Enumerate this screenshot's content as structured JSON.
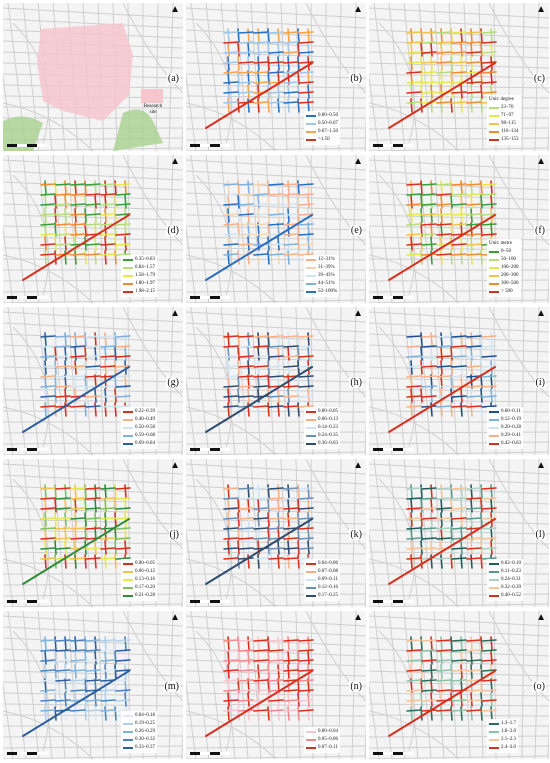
{
  "north_symbol": "▲",
  "research_site_label": "Research site",
  "colors": {
    "background": "#f4f4f4",
    "road": "#cfcfcf",
    "green": "#a9d18e",
    "site": "#f6c6cf"
  },
  "panels": [
    {
      "label": "(a)",
      "legend": null
    },
    {
      "label": "(b)",
      "legend": {
        "unit": "",
        "items": [
          {
            "range": "0.00–0.50",
            "color": "#2b6fbf"
          },
          {
            "range": "0.50–0.67",
            "color": "#9ec6e8"
          },
          {
            "range": "0.67–1.50",
            "color": "#f5a34c"
          },
          {
            "range": ">1.50",
            "color": "#d7301f"
          }
        ]
      }
    },
    {
      "label": "(c)",
      "legend": {
        "unit": "Unit: degree",
        "items": [
          {
            "range": "23–70",
            "color": "#b5dd7a"
          },
          {
            "range": "71–97",
            "color": "#e7e64e"
          },
          {
            "range": "98–115",
            "color": "#f3c24b"
          },
          {
            "range": "116–134",
            "color": "#f08a34"
          },
          {
            "range": "135–153",
            "color": "#d7301f"
          }
        ]
      }
    },
    {
      "label": "(d)",
      "legend": {
        "unit": "",
        "items": [
          {
            "range": "0.35–0.83",
            "color": "#3a9d3a"
          },
          {
            "range": "0.84–1.57",
            "color": "#b5dd7a"
          },
          {
            "range": "1.58–1.79",
            "color": "#e7e64e"
          },
          {
            "range": "1.80–1.97",
            "color": "#f08a34"
          },
          {
            "range": "1.98–2.15",
            "color": "#d7301f"
          }
        ]
      }
    },
    {
      "label": "(e)",
      "legend": {
        "unit": "",
        "items": [
          {
            "range": "12–31%",
            "color": "#f5b08a"
          },
          {
            "range": "31–39%",
            "color": "#f3d5b5"
          },
          {
            "range": "39–43%",
            "color": "#cfe3f0"
          },
          {
            "range": "44–51%",
            "color": "#7fb1da"
          },
          {
            "range": "52–100%",
            "color": "#2b6fbf"
          }
        ]
      }
    },
    {
      "label": "(f)",
      "legend": {
        "unit": "Unit: metre",
        "items": [
          {
            "range": "0–50",
            "color": "#3a9d3a"
          },
          {
            "range": "50–100",
            "color": "#b5dd7a"
          },
          {
            "range": "100–200",
            "color": "#e7e64e"
          },
          {
            "range": "200–300",
            "color": "#f3c24b"
          },
          {
            "range": "300–500",
            "color": "#f08a34"
          },
          {
            "range": "> 500",
            "color": "#d7301f"
          }
        ]
      }
    },
    {
      "label": "(g)",
      "legend": {
        "unit": "",
        "items": [
          {
            "range": "0.22–0.39",
            "color": "#d7301f"
          },
          {
            "range": "0.40–0.49",
            "color": "#f5b08a"
          },
          {
            "range": "0.50–0.58",
            "color": "#cfe3f0"
          },
          {
            "range": "0.59–0.68",
            "color": "#7fb1da"
          },
          {
            "range": "0.69–0.84",
            "color": "#2b5f9f"
          }
        ]
      }
    },
    {
      "label": "(h)",
      "legend": {
        "unit": "",
        "items": [
          {
            "range": "0.00–0.05",
            "color": "#d7301f"
          },
          {
            "range": "0.06–0.13",
            "color": "#f5b08a"
          },
          {
            "range": "0.14–0.23",
            "color": "#cfe3f0"
          },
          {
            "range": "0.24–0.35",
            "color": "#6a8fb5"
          },
          {
            "range": "0.36–0.63",
            "color": "#2f4b6e"
          }
        ]
      }
    },
    {
      "label": "(i)",
      "legend": {
        "unit": "",
        "items": [
          {
            "range": "0.00–0.11",
            "color": "#1f4e8c"
          },
          {
            "range": "0.12–0.19",
            "color": "#7fb1da"
          },
          {
            "range": "0.20–0.28",
            "color": "#cfe3f0"
          },
          {
            "range": "0.29–0.41",
            "color": "#f5b08a"
          },
          {
            "range": "0.42–0.63",
            "color": "#d7301f"
          }
        ]
      }
    },
    {
      "label": "(j)",
      "legend": {
        "unit": "",
        "items": [
          {
            "range": "0.00–0.05",
            "color": "#d7301f"
          },
          {
            "range": "0.06–0.12",
            "color": "#f3c24b"
          },
          {
            "range": "0.13–0.16",
            "color": "#e7e64e"
          },
          {
            "range": "0.17–0.20",
            "color": "#7cc05a"
          },
          {
            "range": "0.21–0.28",
            "color": "#2e8b3a"
          }
        ]
      }
    },
    {
      "label": "(k)",
      "legend": {
        "unit": "",
        "items": [
          {
            "range": "0.04–0.06",
            "color": "#d7301f"
          },
          {
            "range": "0.07–0.08",
            "color": "#f5b08a"
          },
          {
            "range": "0.09–0.11",
            "color": "#cfe3f0"
          },
          {
            "range": "0.12–0.16",
            "color": "#6a8fb5"
          },
          {
            "range": "0.17–0.25",
            "color": "#2f4b6e"
          }
        ]
      }
    },
    {
      "label": "(l)",
      "legend": {
        "unit": "",
        "items": [
          {
            "range": "0.02–0.10",
            "color": "#1f5c5a"
          },
          {
            "range": "0.11–0.23",
            "color": "#5a9a8a"
          },
          {
            "range": "0.24–0.31",
            "color": "#a9cfc4"
          },
          {
            "range": "0.32–0.39",
            "color": "#f5c29a"
          },
          {
            "range": "0.40–0.52",
            "color": "#d7301f"
          }
        ]
      }
    },
    {
      "label": "(m)",
      "legend": {
        "unit": "",
        "items": [
          {
            "range": "0.04–0.18",
            "color": "#dce9f5"
          },
          {
            "range": "0.19–0.25",
            "color": "#b3cfe8"
          },
          {
            "range": "0.26–0.29",
            "color": "#7fb1da"
          },
          {
            "range": "0.30–0.32",
            "color": "#4a84c0"
          },
          {
            "range": "0.33–0.37",
            "color": "#2b5f9f"
          }
        ]
      }
    },
    {
      "label": "(n)",
      "legend": {
        "unit": "",
        "items": [
          {
            "range": "0.00–0.04",
            "color": "#f6c6cf"
          },
          {
            "range": "0.05–0.06",
            "color": "#ef8a8a"
          },
          {
            "range": "0.07–0.11",
            "color": "#d7301f"
          }
        ]
      }
    },
    {
      "label": "(o)",
      "legend": {
        "unit": "",
        "items": [
          {
            "range": "1.3–1.7",
            "color": "#2f6b5a"
          },
          {
            "range": "1.8–2.0",
            "color": "#8fc0a9"
          },
          {
            "range": "2.1–2.3",
            "color": "#f5c29a"
          },
          {
            "range": "2.4–3.0",
            "color": "#d7301f"
          }
        ]
      }
    }
  ]
}
